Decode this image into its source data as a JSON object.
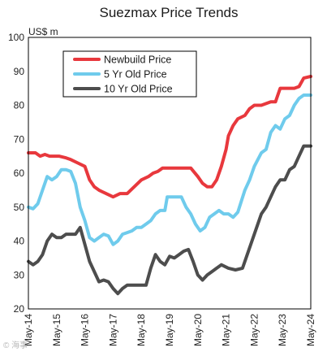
{
  "chart_data": {
    "type": "line",
    "title": "Suezmax Price Trends",
    "ylabel": "US$ m",
    "xlabel": "",
    "ylim": [
      20,
      100
    ],
    "yticks": [
      20,
      30,
      40,
      50,
      60,
      70,
      80,
      90,
      100
    ],
    "xlim": [
      "2014-05",
      "2024-05"
    ],
    "xticks": [
      "May-14",
      "May-15",
      "May-16",
      "May-17",
      "May-18",
      "May-19",
      "May-20",
      "May-21",
      "May-22",
      "May-23",
      "May-24"
    ],
    "grid": false,
    "legend": {
      "position": "top-left"
    },
    "series": [
      {
        "name": "Newbuild Price",
        "color": "#e8383d",
        "points": [
          [
            "2014-05",
            66
          ],
          [
            "2014-08",
            66
          ],
          [
            "2014-10",
            65
          ],
          [
            "2014-12",
            65.5
          ],
          [
            "2015-02",
            65
          ],
          [
            "2015-06",
            65
          ],
          [
            "2015-09",
            64.5
          ],
          [
            "2015-11",
            64
          ],
          [
            "2016-02",
            63
          ],
          [
            "2016-05",
            62
          ],
          [
            "2016-07",
            58
          ],
          [
            "2016-09",
            56
          ],
          [
            "2016-11",
            55
          ],
          [
            "2017-02",
            54
          ],
          [
            "2017-05",
            53
          ],
          [
            "2017-08",
            54
          ],
          [
            "2017-11",
            54
          ],
          [
            "2018-02",
            56
          ],
          [
            "2018-05",
            58
          ],
          [
            "2018-08",
            59
          ],
          [
            "2018-10",
            60
          ],
          [
            "2018-12",
            60.5
          ],
          [
            "2019-02",
            61.5
          ],
          [
            "2019-06",
            61.5
          ],
          [
            "2019-10",
            61.5
          ],
          [
            "2020-02",
            61.5
          ],
          [
            "2020-05",
            59
          ],
          [
            "2020-07",
            57
          ],
          [
            "2020-09",
            56
          ],
          [
            "2020-11",
            56
          ],
          [
            "2021-01",
            58
          ],
          [
            "2021-03",
            62
          ],
          [
            "2021-05",
            67
          ],
          [
            "2021-06",
            71
          ],
          [
            "2021-08",
            74
          ],
          [
            "2021-10",
            76
          ],
          [
            "2022-01",
            77
          ],
          [
            "2022-03",
            79
          ],
          [
            "2022-05",
            80
          ],
          [
            "2022-08",
            80
          ],
          [
            "2022-10",
            80.5
          ],
          [
            "2022-12",
            81
          ],
          [
            "2023-02",
            81
          ],
          [
            "2023-04",
            85
          ],
          [
            "2023-07",
            85
          ],
          [
            "2023-10",
            85
          ],
          [
            "2023-12",
            85.5
          ],
          [
            "2024-02",
            88
          ],
          [
            "2024-05",
            88.5
          ]
        ]
      },
      {
        "name": "5 Yr Old Price",
        "color": "#6fcbec",
        "points": [
          [
            "2014-05",
            50
          ],
          [
            "2014-07",
            49.5
          ],
          [
            "2014-09",
            51
          ],
          [
            "2014-11",
            55
          ],
          [
            "2015-01",
            59
          ],
          [
            "2015-03",
            58
          ],
          [
            "2015-05",
            59
          ],
          [
            "2015-07",
            61
          ],
          [
            "2015-09",
            61
          ],
          [
            "2015-11",
            60.5
          ],
          [
            "2016-01",
            57
          ],
          [
            "2016-03",
            50
          ],
          [
            "2016-05",
            46
          ],
          [
            "2016-07",
            41
          ],
          [
            "2016-09",
            40
          ],
          [
            "2016-11",
            41
          ],
          [
            "2017-01",
            42
          ],
          [
            "2017-03",
            41.5
          ],
          [
            "2017-05",
            39
          ],
          [
            "2017-07",
            40
          ],
          [
            "2017-09",
            42
          ],
          [
            "2017-11",
            42.5
          ],
          [
            "2018-01",
            43
          ],
          [
            "2018-03",
            44
          ],
          [
            "2018-05",
            44
          ],
          [
            "2018-07",
            45
          ],
          [
            "2018-09",
            46
          ],
          [
            "2018-11",
            48
          ],
          [
            "2019-01",
            49
          ],
          [
            "2019-03",
            49
          ],
          [
            "2019-04",
            53
          ],
          [
            "2019-08",
            53
          ],
          [
            "2019-10",
            53
          ],
          [
            "2019-12",
            50
          ],
          [
            "2020-02",
            48
          ],
          [
            "2020-04",
            45
          ],
          [
            "2020-06",
            43
          ],
          [
            "2020-08",
            44
          ],
          [
            "2020-10",
            47
          ],
          [
            "2020-12",
            48
          ],
          [
            "2021-02",
            49
          ],
          [
            "2021-04",
            48
          ],
          [
            "2021-06",
            48
          ],
          [
            "2021-08",
            47
          ],
          [
            "2021-10",
            48.5
          ],
          [
            "2022-01",
            55
          ],
          [
            "2022-03",
            58
          ],
          [
            "2022-05",
            62
          ],
          [
            "2022-08",
            66
          ],
          [
            "2022-10",
            67
          ],
          [
            "2022-12",
            72
          ],
          [
            "2023-02",
            74
          ],
          [
            "2023-04",
            73
          ],
          [
            "2023-06",
            76
          ],
          [
            "2023-08",
            77
          ],
          [
            "2023-10",
            80
          ],
          [
            "2023-12",
            82
          ],
          [
            "2024-02",
            83
          ],
          [
            "2024-05",
            83
          ]
        ]
      },
      {
        "name": "10 Yr Old Price",
        "color": "#4d4d4d",
        "points": [
          [
            "2014-05",
            34
          ],
          [
            "2014-07",
            33
          ],
          [
            "2014-09",
            34
          ],
          [
            "2014-11",
            36
          ],
          [
            "2015-01",
            40
          ],
          [
            "2015-03",
            42
          ],
          [
            "2015-05",
            41
          ],
          [
            "2015-07",
            41
          ],
          [
            "2015-09",
            42
          ],
          [
            "2015-11",
            42
          ],
          [
            "2016-01",
            42
          ],
          [
            "2016-03",
            44
          ],
          [
            "2016-05",
            39
          ],
          [
            "2016-07",
            34
          ],
          [
            "2016-09",
            31
          ],
          [
            "2016-11",
            28
          ],
          [
            "2017-01",
            28.5
          ],
          [
            "2017-03",
            28
          ],
          [
            "2017-05",
            26
          ],
          [
            "2017-07",
            24.5
          ],
          [
            "2017-09",
            26
          ],
          [
            "2017-11",
            27
          ],
          [
            "2018-01",
            27
          ],
          [
            "2018-04",
            27
          ],
          [
            "2018-07",
            27
          ],
          [
            "2018-09",
            32
          ],
          [
            "2018-11",
            36
          ],
          [
            "2019-01",
            34
          ],
          [
            "2019-03",
            33
          ],
          [
            "2019-05",
            35.5
          ],
          [
            "2019-07",
            35
          ],
          [
            "2019-09",
            36
          ],
          [
            "2019-11",
            37
          ],
          [
            "2020-01",
            37.5
          ],
          [
            "2020-03",
            34
          ],
          [
            "2020-05",
            30
          ],
          [
            "2020-07",
            28.5
          ],
          [
            "2020-09",
            30
          ],
          [
            "2020-11",
            31
          ],
          [
            "2021-01",
            32
          ],
          [
            "2021-03",
            33
          ],
          [
            "2021-06",
            32
          ],
          [
            "2021-09",
            31.5
          ],
          [
            "2021-12",
            32
          ],
          [
            "2022-02",
            36
          ],
          [
            "2022-04",
            40
          ],
          [
            "2022-06",
            44
          ],
          [
            "2022-08",
            48
          ],
          [
            "2022-10",
            50
          ],
          [
            "2022-12",
            53
          ],
          [
            "2023-02",
            56
          ],
          [
            "2023-04",
            58
          ],
          [
            "2023-06",
            58
          ],
          [
            "2023-08",
            61
          ],
          [
            "2023-10",
            62
          ],
          [
            "2023-12",
            65
          ],
          [
            "2024-02",
            68
          ],
          [
            "2024-05",
            68
          ]
        ]
      }
    ]
  },
  "watermark": "© 海事"
}
